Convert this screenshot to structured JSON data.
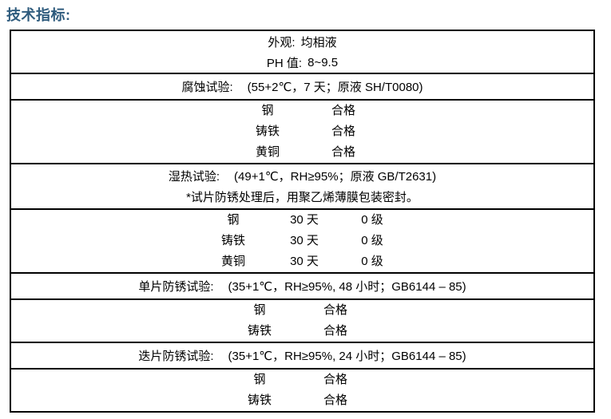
{
  "theme": {
    "title_color": "#2e5b7d",
    "border_color": "#000000",
    "text_color": "#000000"
  },
  "page": {
    "title": "技术指标:"
  },
  "table": {
    "sections": [
      {
        "type": "kv",
        "rows": [
          {
            "label": "外观:",
            "value": "均相液"
          },
          {
            "label": "PH 值:",
            "value": "8~9.5"
          }
        ]
      },
      {
        "type": "test",
        "label": "腐蚀试验:",
        "condition": "(55+2℃，7 天；原液  SH/T0080)"
      },
      {
        "type": "results2",
        "rows": [
          [
            "钢",
            "合格"
          ],
          [
            "铸铁",
            "合格"
          ],
          [
            "黄铜",
            "合格"
          ]
        ]
      },
      {
        "type": "test-with-note",
        "label": "湿热试验:",
        "condition": "(49+1℃，RH≥95%；原液  GB/T2631)",
        "note": "*试片防锈处理后，用聚乙烯薄膜包装密封。"
      },
      {
        "type": "results3",
        "rows": [
          [
            "钢",
            "30 天",
            "0 级"
          ],
          [
            "铸铁",
            "30 天",
            "0 级"
          ],
          [
            "黄铜",
            "30 天",
            "0 级"
          ]
        ]
      },
      {
        "type": "test",
        "label": "单片防锈试验:",
        "condition": "(35+1℃，RH≥95%, 48 小时；GB6144 – 85)"
      },
      {
        "type": "results2",
        "rows": [
          [
            "钢",
            "合格"
          ],
          [
            "铸铁",
            "合格"
          ]
        ]
      },
      {
        "type": "test",
        "label": "迭片防锈试验:",
        "condition": "(35+1℃，RH≥95%, 24 小时；GB6144 – 85)"
      },
      {
        "type": "results2",
        "rows": [
          [
            "钢",
            "合格"
          ],
          [
            "铸铁",
            "合格"
          ]
        ]
      }
    ]
  }
}
